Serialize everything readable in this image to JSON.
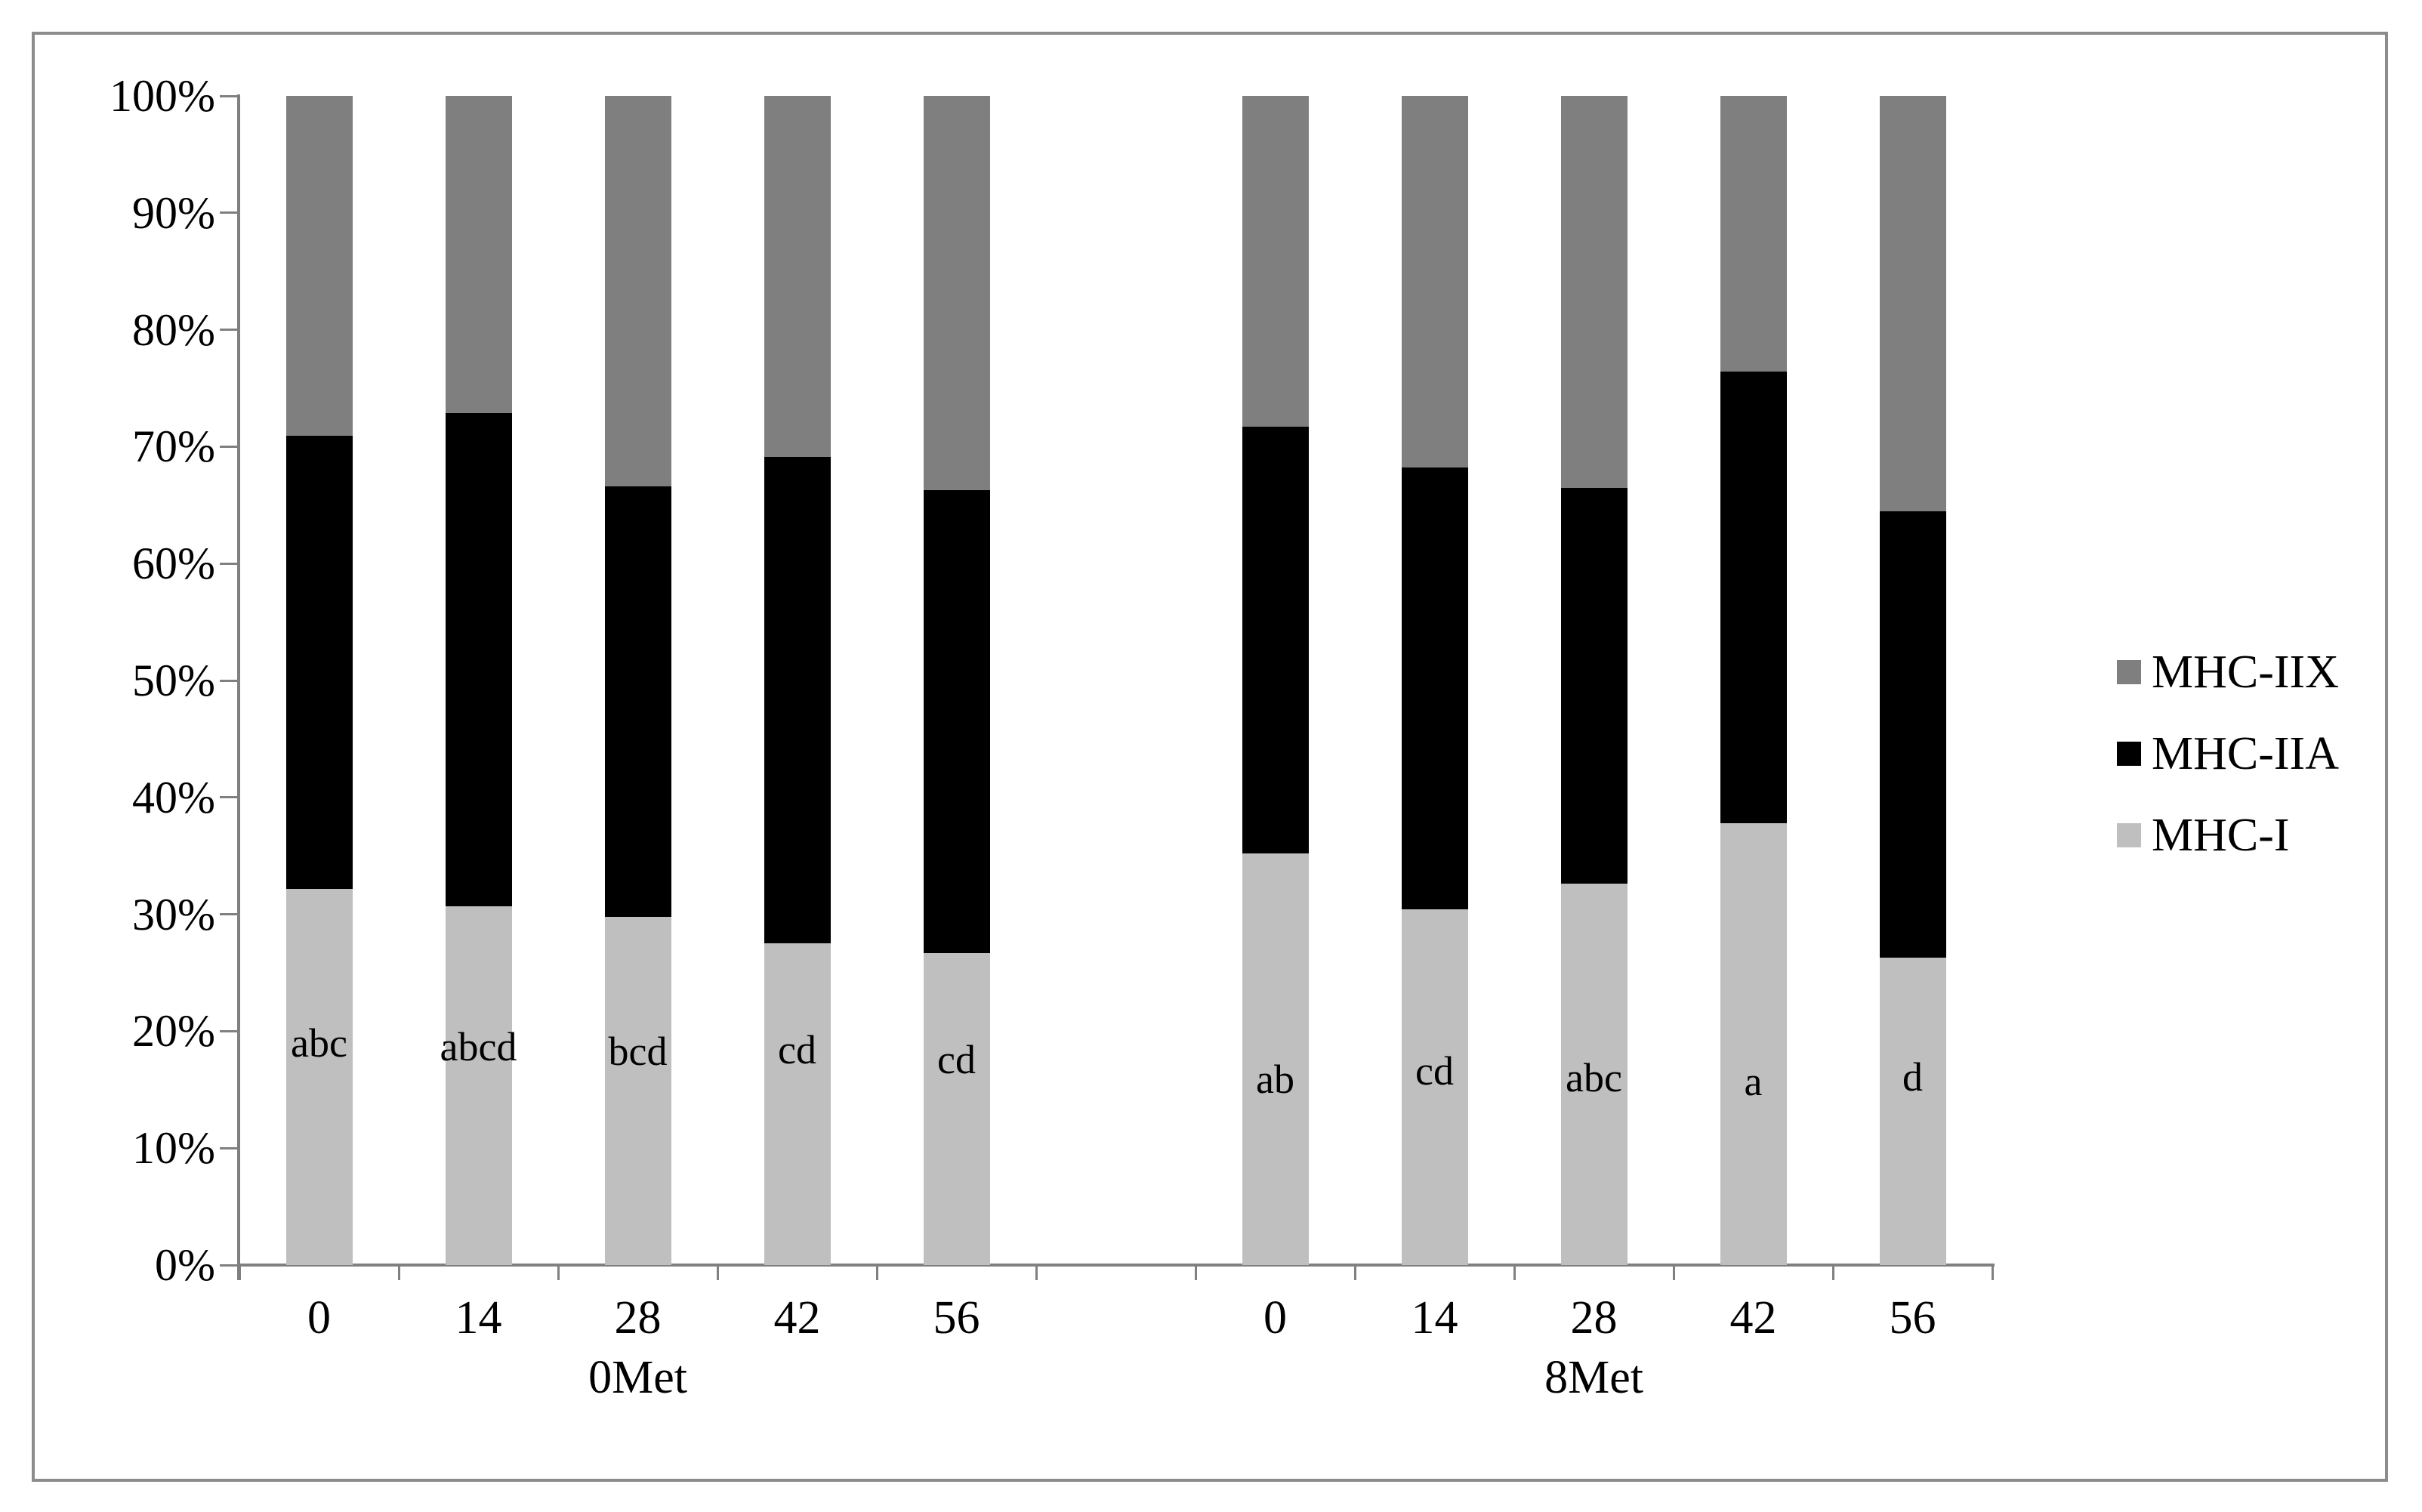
{
  "chart_data": {
    "type": "bar",
    "stacked": true,
    "percent_stacked": true,
    "title": "",
    "xlabel": "",
    "ylabel": "",
    "ylim": [
      0,
      100
    ],
    "ytick_labels": [
      "0%",
      "10%",
      "20%",
      "30%",
      "40%",
      "50%",
      "60%",
      "70%",
      "80%",
      "90%",
      "100%"
    ],
    "grid": false,
    "legend_position": "right",
    "series": [
      {
        "name": "MHC-IIX",
        "color": "#7f7f7f"
      },
      {
        "name": "MHC-IIA",
        "color": "#000000"
      },
      {
        "name": "MHC-I",
        "color": "#bfbfbf"
      }
    ],
    "groups": [
      {
        "label": "0Met",
        "bars": [
          {
            "category": "0",
            "MHC-I": 32.2,
            "MHC-IIA": 38.7,
            "MHC-IIX": 29.1,
            "annotation": "abc",
            "annotation_y_pct": 19.0
          },
          {
            "category": "14",
            "MHC-I": 30.7,
            "MHC-IIA": 42.2,
            "MHC-IIX": 27.1,
            "annotation": "abcd",
            "annotation_y_pct": 18.7
          },
          {
            "category": "28",
            "MHC-I": 29.8,
            "MHC-IIA": 36.8,
            "MHC-IIX": 33.4,
            "annotation": "bcd",
            "annotation_y_pct": 18.3
          },
          {
            "category": "42",
            "MHC-I": 27.5,
            "MHC-IIA": 41.6,
            "MHC-IIX": 30.9,
            "annotation": "cd",
            "annotation_y_pct": 18.4
          },
          {
            "category": "56",
            "MHC-I": 26.7,
            "MHC-IIA": 39.6,
            "MHC-IIX": 33.7,
            "annotation": "cd",
            "annotation_y_pct": 17.6
          }
        ]
      },
      {
        "label": "8Met",
        "bars": [
          {
            "category": "0",
            "MHC-I": 35.2,
            "MHC-IIA": 36.5,
            "MHC-IIX": 28.3,
            "annotation": "ab",
            "annotation_y_pct": 15.9
          },
          {
            "category": "14",
            "MHC-I": 30.4,
            "MHC-IIA": 37.8,
            "MHC-IIX": 31.8,
            "annotation": "cd",
            "annotation_y_pct": 16.6
          },
          {
            "category": "28",
            "MHC-I": 32.6,
            "MHC-IIA": 33.9,
            "MHC-IIX": 33.5,
            "annotation": "abc",
            "annotation_y_pct": 16.0
          },
          {
            "category": "42",
            "MHC-I": 37.8,
            "MHC-IIA": 38.6,
            "MHC-IIX": 23.6,
            "annotation": "a",
            "annotation_y_pct": 15.7
          },
          {
            "category": "56",
            "MHC-I": 26.3,
            "MHC-IIA": 38.2,
            "MHC-IIX": 35.5,
            "annotation": "d",
            "annotation_y_pct": 16.1
          }
        ]
      }
    ],
    "colors": {
      "axis": "#808080",
      "frame_border": "#8c8c8c",
      "text": "#000000",
      "background": "#ffffff"
    }
  }
}
